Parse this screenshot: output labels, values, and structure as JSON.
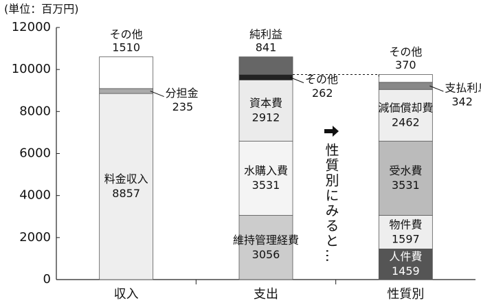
{
  "chart_data": {
    "type": "stacked-bar",
    "unit_label": "(単位：百万円)",
    "annotation": "性質別にみると…",
    "categories": [
      "収入",
      "支出",
      "性質別"
    ],
    "ylim": [
      0,
      12000
    ],
    "yticks": [
      0,
      2000,
      4000,
      6000,
      8000,
      10000,
      12000
    ],
    "stacks": [
      {
        "segments": [
          {
            "name": "料金収入",
            "value": 8857,
            "color": "#eeeeee"
          },
          {
            "name": "分担金",
            "value": 235,
            "color": "#aaaaaa"
          },
          {
            "name": "その他",
            "value": 1510,
            "color": "#ffffff"
          }
        ]
      },
      {
        "segments": [
          {
            "name": "維持管理経費",
            "value": 3056,
            "color": "#cccccc"
          },
          {
            "name": "水購入費",
            "value": 3531,
            "color": "#f4f4f4"
          },
          {
            "name": "資本費",
            "value": 2912,
            "color": "#ebebeb"
          },
          {
            "name": "その他",
            "value": 262,
            "color": "#222222"
          },
          {
            "name": "純利益",
            "value": 841,
            "color": "#666666"
          }
        ]
      },
      {
        "segments": [
          {
            "name": "人件費",
            "value": 1459,
            "color": "#555555"
          },
          {
            "name": "物件費",
            "value": 1597,
            "color": "#eeeeee"
          },
          {
            "name": "受水費",
            "value": 3531,
            "color": "#bbbbbb"
          },
          {
            "name": "減価償却費",
            "value": 2462,
            "color": "#eeeeee"
          },
          {
            "name": "支払利息",
            "value": 342,
            "color": "#888888"
          },
          {
            "name": "その他",
            "value": 370,
            "color": "#ffffff"
          }
        ]
      }
    ]
  }
}
